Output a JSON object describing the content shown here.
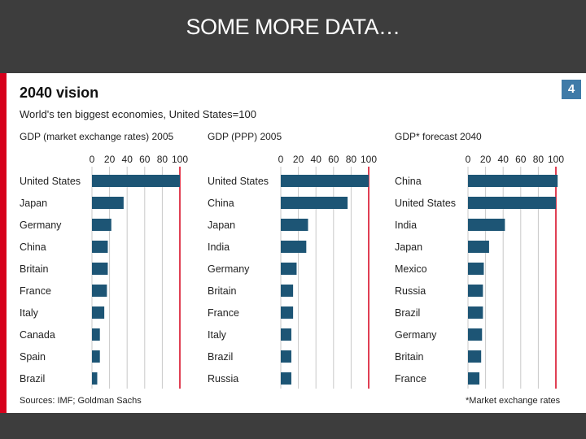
{
  "slide": {
    "title": "SOME MORE DATA…"
  },
  "figure": {
    "title": "2040 vision",
    "subtitle": "World's ten biggest economies, United States=100",
    "chart_number": "4",
    "source": "Sources: IMF; Goldman Sachs",
    "footnote": "*Market exchange rates"
  },
  "colors": {
    "bar": "#1d5575",
    "reference_line": "#d6001c",
    "grid": "#c9c9c9",
    "panel_bg": "#ffffff"
  },
  "chart_data": [
    {
      "type": "bar",
      "orientation": "horizontal",
      "title": "GDP (market exchange rates) 2005",
      "categories": [
        "United States",
        "Japan",
        "Germany",
        "China",
        "Britain",
        "France",
        "Italy",
        "Canada",
        "Spain",
        "Brazil"
      ],
      "values": [
        100,
        36,
        22,
        18,
        18,
        17,
        14,
        9,
        9,
        6
      ],
      "xlim": [
        0,
        100
      ],
      "xticks": [
        "0",
        "20",
        "40",
        "60",
        "80",
        "100"
      ],
      "reference_value": 100
    },
    {
      "type": "bar",
      "orientation": "horizontal",
      "title": "GDP (PPP) 2005",
      "categories": [
        "United States",
        "China",
        "Japan",
        "India",
        "Germany",
        "Britain",
        "France",
        "Italy",
        "Brazil",
        "Russia"
      ],
      "values": [
        100,
        76,
        31,
        29,
        18,
        14,
        14,
        12,
        12,
        12
      ],
      "xlim": [
        0,
        100
      ],
      "xticks": [
        "0",
        "20",
        "40",
        "60",
        "80",
        "100"
      ],
      "reference_value": 100
    },
    {
      "type": "bar",
      "orientation": "horizontal",
      "title": "GDP* forecast 2040",
      "categories": [
        "China",
        "United States",
        "India",
        "Japan",
        "Mexico",
        "Russia",
        "Brazil",
        "Germany",
        "Britain",
        "France"
      ],
      "values": [
        102,
        100,
        42,
        24,
        18,
        17,
        17,
        16,
        15,
        13
      ],
      "xlim": [
        0,
        100
      ],
      "xticks": [
        "0",
        "20",
        "40",
        "60",
        "80",
        "100"
      ],
      "reference_value": 100
    }
  ]
}
